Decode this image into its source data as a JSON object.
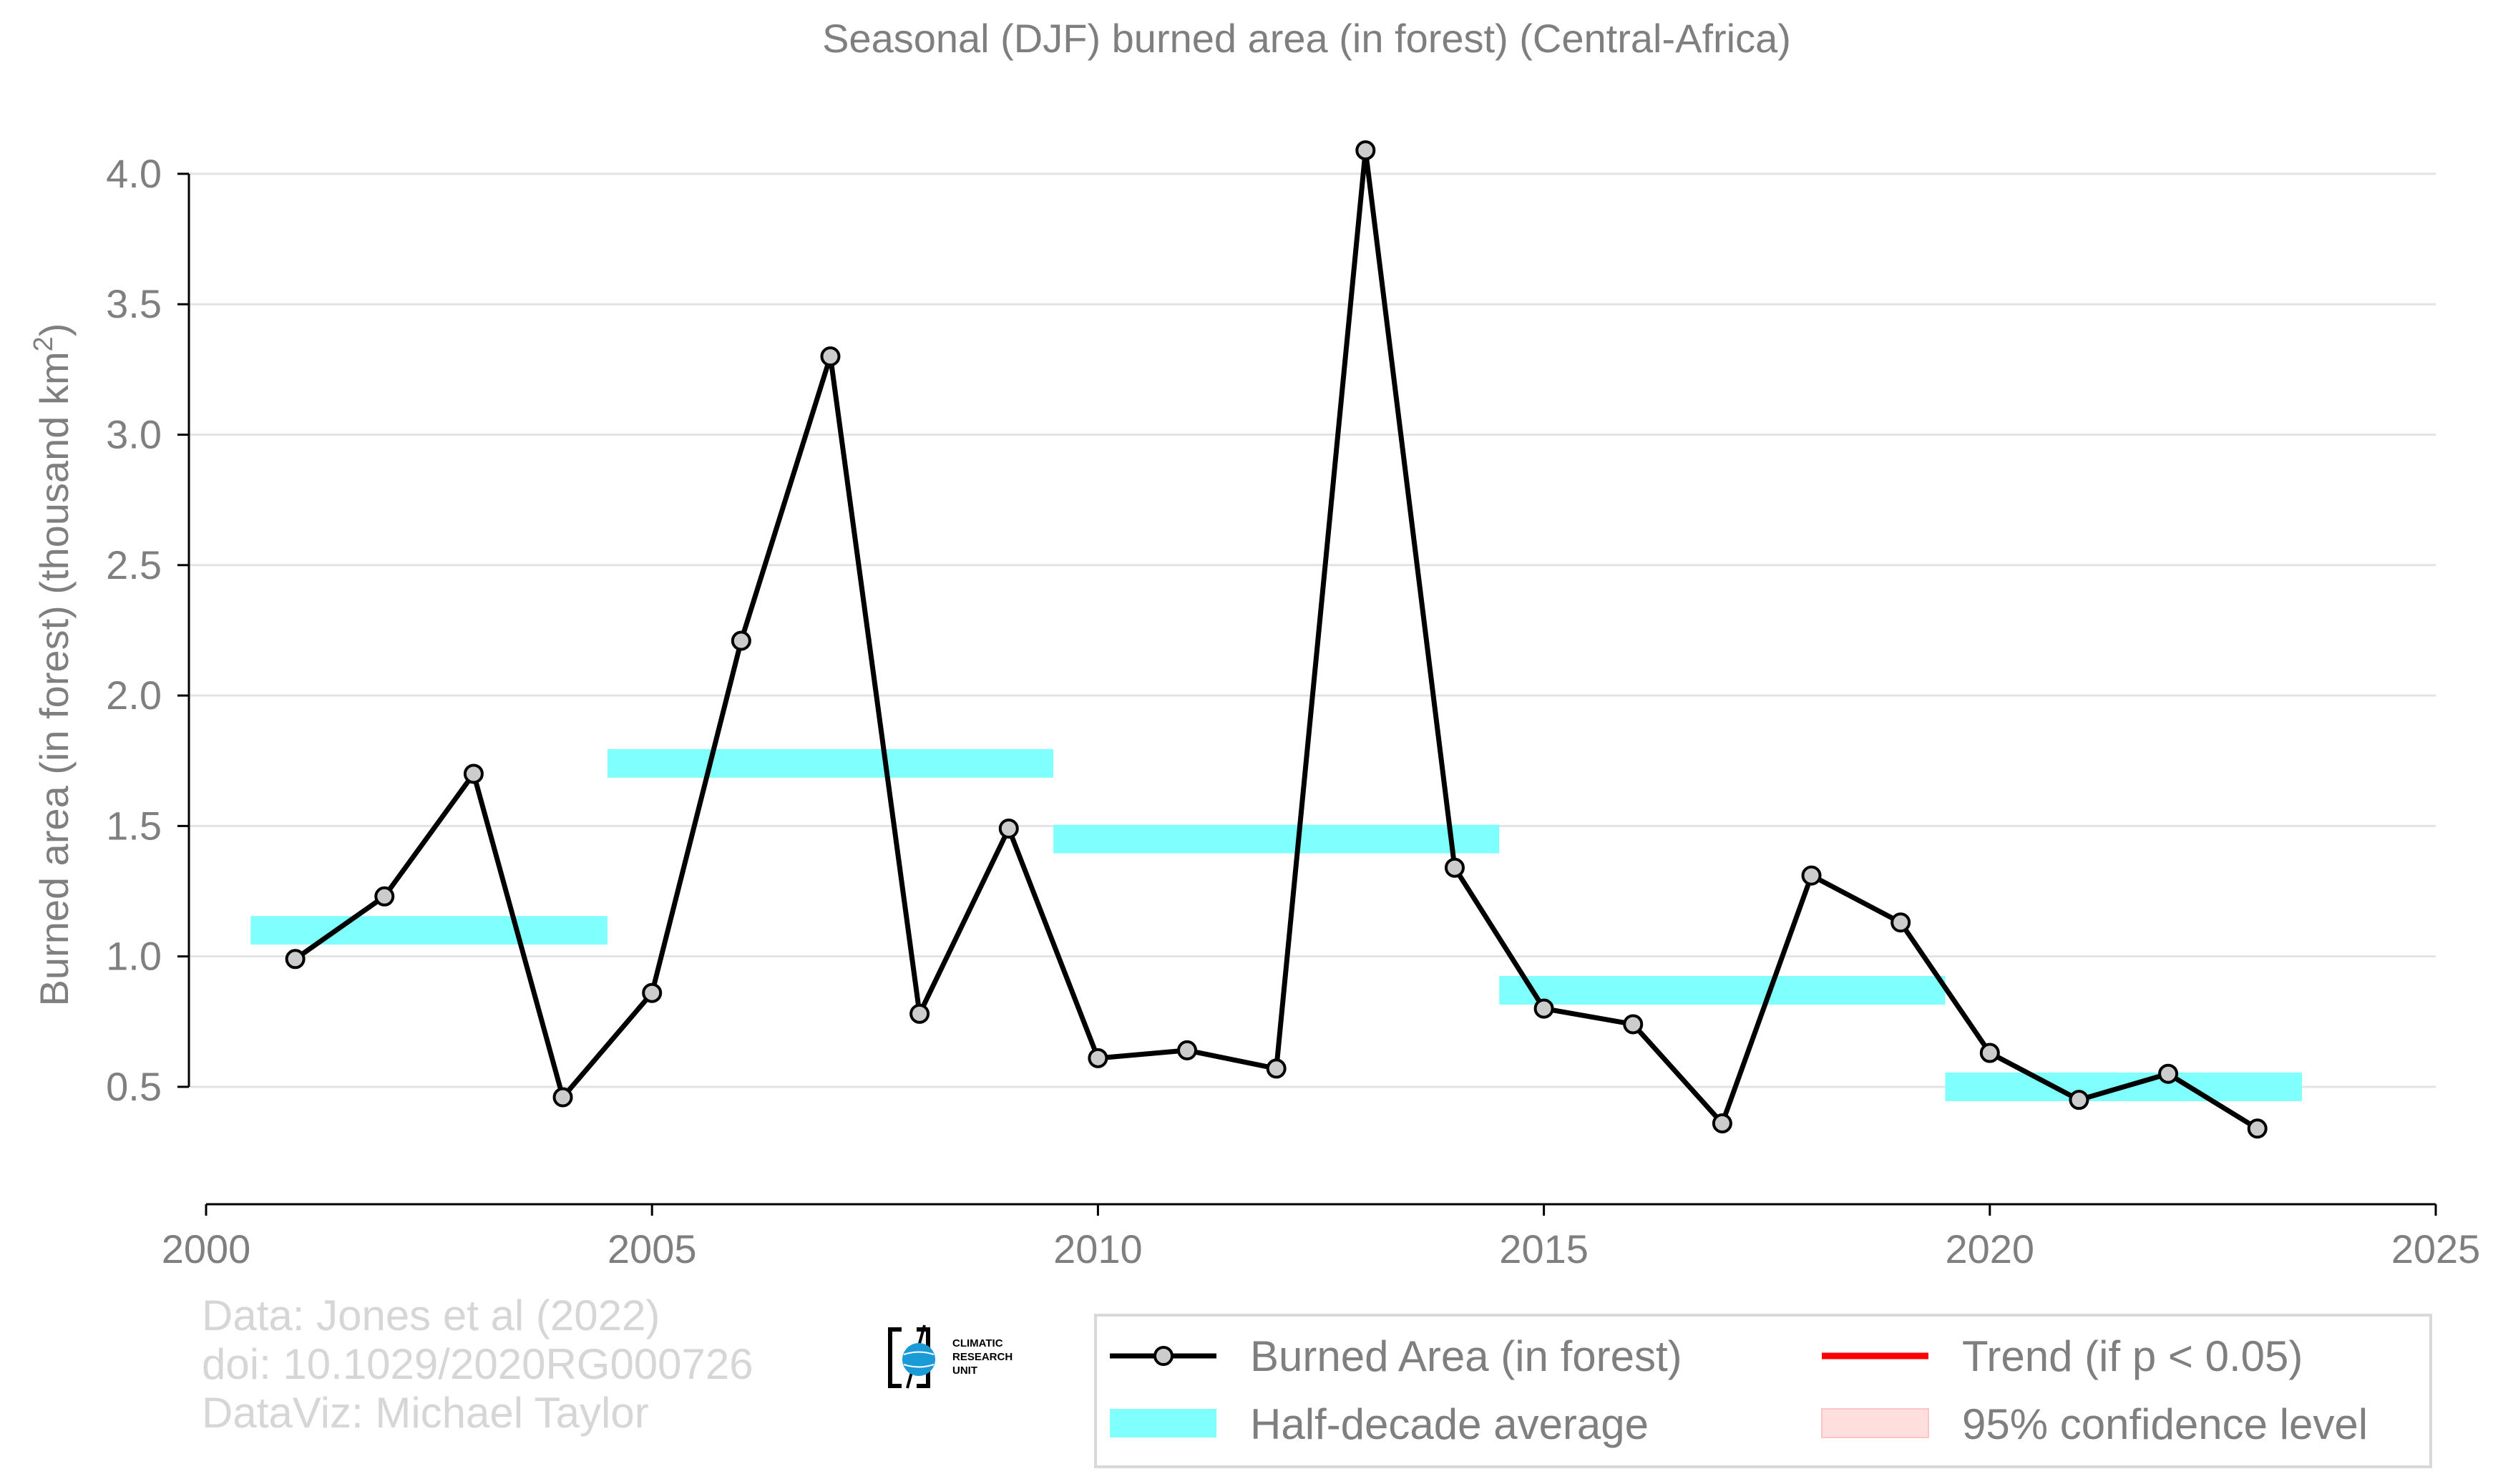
{
  "chart_data": {
    "type": "line",
    "title": "Seasonal (DJF) burned area (in forest) (Central-Africa)",
    "ylabel_main": "Burned area (in forest) (thousand km",
    "ylabel_sup": "2",
    "ylabel_end": ")",
    "xlim": [
      2000,
      2025
    ],
    "ylim": [
      0.05,
      4.2
    ],
    "x_ticks": [
      2000,
      2005,
      2010,
      2015,
      2020,
      2025
    ],
    "y_ticks": [
      0.5,
      1.0,
      1.5,
      2.0,
      2.5,
      3.0,
      3.5,
      4.0
    ],
    "y_tick_labels": [
      "0.5",
      "1.0",
      "1.5",
      "2.0",
      "2.5",
      "3.0",
      "3.5",
      "4.0"
    ],
    "grid": true,
    "series": [
      {
        "name": "Burned Area (in forest)",
        "color": "#000000",
        "marker_fill": "#cccccc",
        "x": [
          2001,
          2002,
          2003,
          2004,
          2005,
          2006,
          2007,
          2008,
          2009,
          2010,
          2011,
          2012,
          2013,
          2014,
          2015,
          2016,
          2017,
          2018,
          2019,
          2020,
          2021,
          2022,
          2023
        ],
        "y": [
          0.99,
          1.23,
          1.7,
          0.46,
          0.86,
          2.21,
          3.3,
          0.78,
          1.49,
          0.61,
          0.64,
          0.57,
          4.09,
          1.34,
          0.8,
          0.74,
          0.36,
          1.31,
          1.13,
          0.63,
          0.45,
          0.55,
          0.34
        ]
      }
    ],
    "half_decade_averages": [
      {
        "x_start": 2000.5,
        "x_end": 2004.5,
        "value": 1.1
      },
      {
        "x_start": 2004.5,
        "x_end": 2009.5,
        "value": 1.74
      },
      {
        "x_start": 2009.5,
        "x_end": 2014.5,
        "value": 1.45
      },
      {
        "x_start": 2014.5,
        "x_end": 2019.5,
        "value": 0.87
      },
      {
        "x_start": 2019.5,
        "x_end": 2023.5,
        "value": 0.5
      }
    ],
    "avg_color": "#80ffff",
    "legend": {
      "placement": "bottom-right",
      "entries": [
        {
          "label": "Burned Area (in forest)",
          "kind": "line-marker",
          "color": "#000000"
        },
        {
          "label": "Trend (if p < 0.05)",
          "kind": "line",
          "color": "#ff0000"
        },
        {
          "label": "Half-decade average",
          "kind": "band",
          "color": "#80ffff"
        },
        {
          "label": "95% confidence level",
          "kind": "band",
          "color": "#ffdede"
        }
      ]
    }
  },
  "credits": {
    "line1": "Data: Jones et al (2022)",
    "line2": "doi: 10.1029/2020RG000726",
    "line3": "DataViz: Michael Taylor"
  },
  "logo": {
    "icon": "climatic-research-unit-logo",
    "line1": "CLIMATIC",
    "line2": "RESEARCH",
    "line3": "UNIT"
  }
}
